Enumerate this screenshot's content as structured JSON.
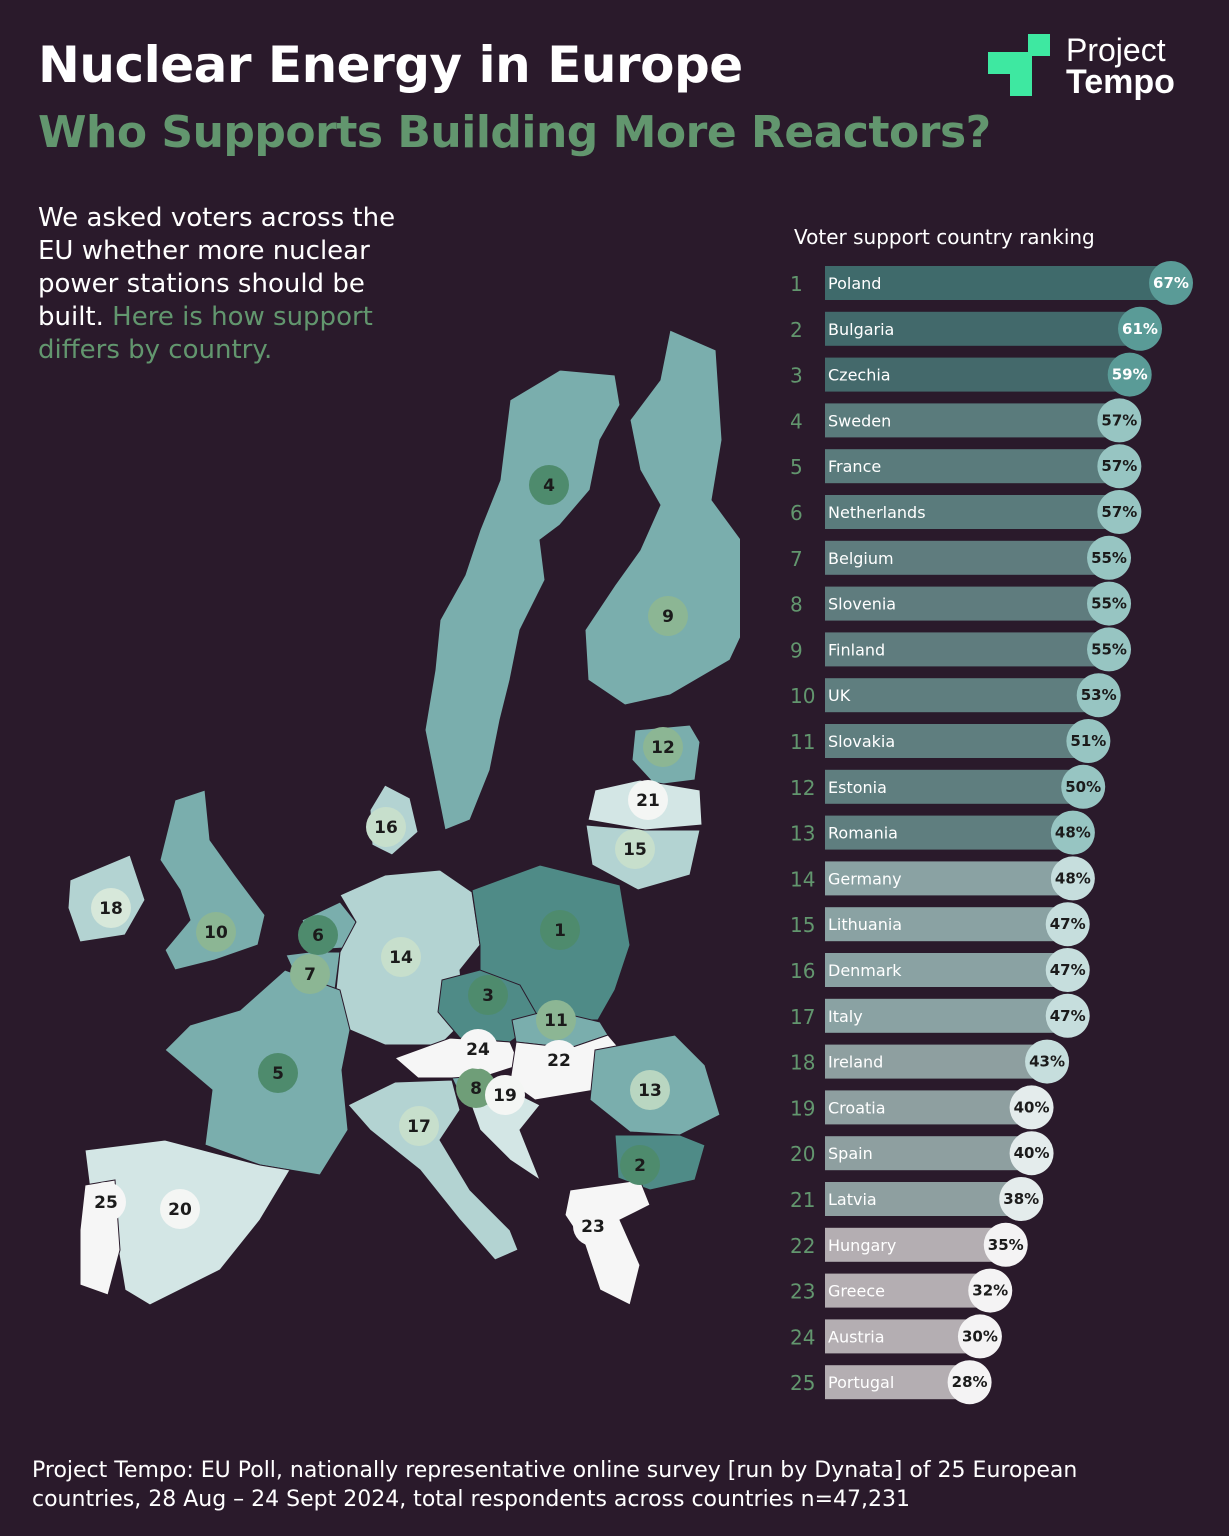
{
  "header": {
    "title": "Nuclear Energy in Europe",
    "subtitle": "Who Supports Building More Reactors?"
  },
  "logo": {
    "line1": "Project",
    "line2": "Tempo",
    "accent_color": "#3ee8a1"
  },
  "intro": {
    "text": "We asked voters across the EU whether more nuclear power stations should be built.",
    "highlight": "Here is how support differs by country."
  },
  "chart_data": {
    "type": "bar",
    "title": "Voter support country ranking",
    "orientation": "horizontal",
    "xlim": [
      0,
      67
    ],
    "grid": false,
    "ranks": [
      1,
      2,
      3,
      4,
      5,
      6,
      7,
      8,
      9,
      10,
      11,
      12,
      13,
      14,
      15,
      16,
      17,
      18,
      19,
      20,
      21,
      22,
      23,
      24,
      25
    ],
    "categories": [
      "Poland",
      "Bulgaria",
      "Czechia",
      "Sweden",
      "France",
      "Netherlands",
      "Belgium",
      "Slovenia",
      "Finland",
      "UK",
      "Slovakia",
      "Estonia",
      "Romania",
      "Germany",
      "Lithuania",
      "Denmark",
      "Italy",
      "Ireland",
      "Croatia",
      "Spain",
      "Latvia",
      "Hungary",
      "Greece",
      "Austria",
      "Portugal"
    ],
    "values": [
      67,
      61,
      59,
      57,
      57,
      57,
      55,
      55,
      55,
      53,
      51,
      50,
      48,
      48,
      47,
      47,
      47,
      43,
      40,
      40,
      38,
      35,
      32,
      30,
      28
    ],
    "value_labels": [
      "67%",
      "61%",
      "59%",
      "57%",
      "57%",
      "57%",
      "55%",
      "55%",
      "55%",
      "53%",
      "51%",
      "50%",
      "48%",
      "48%",
      "47%",
      "47%",
      "47%",
      "43%",
      "40%",
      "40%",
      "38%",
      "35%",
      "32%",
      "30%",
      "28%"
    ],
    "bar_colors": [
      "#3f6a6b",
      "#42696b",
      "#44696b",
      "#5a7b7c",
      "#5a7b7c",
      "#5a7b7c",
      "#5f7c7e",
      "#5f7c7e",
      "#5f7c7e",
      "#5f7e7f",
      "#5f7e7f",
      "#5f7e7f",
      "#5f7e7f",
      "#8aa2a3",
      "#8aa2a3",
      "#8aa2a3",
      "#8aa2a3",
      "#8e9fa0",
      "#8e9fa0",
      "#8e9fa0",
      "#8e9fa0",
      "#b4aeb2",
      "#b4aeb2",
      "#b4aeb2",
      "#b4aeb2"
    ],
    "badge_colors": [
      "#5a9b97",
      "#5a9b97",
      "#5a9b97",
      "#97c5c2",
      "#97c5c2",
      "#97c5c2",
      "#97c5c2",
      "#97c5c2",
      "#97c5c2",
      "#97c5c2",
      "#97c5c2",
      "#97c5c2",
      "#97c5c2",
      "#c6dedd",
      "#c6dedd",
      "#c6dedd",
      "#c6dedd",
      "#c6dedd",
      "#e4ecec",
      "#e4ecec",
      "#e4ecec",
      "#f4f3f4",
      "#f4f3f4",
      "#f4f3f4",
      "#f4f3f4"
    ]
  },
  "map": {
    "countries": [
      {
        "name": "Poland",
        "rank": "1",
        "fill": "#4f8b87",
        "marker": "#4e8b6d"
      },
      {
        "name": "Bulgaria",
        "rank": "2",
        "fill": "#4f8b87",
        "marker": "#4e8b6d"
      },
      {
        "name": "Czechia",
        "rank": "3",
        "fill": "#4f8b87",
        "marker": "#4e8b6d"
      },
      {
        "name": "Sweden",
        "rank": "4",
        "fill": "#7aaead",
        "marker": "#4e8b6d"
      },
      {
        "name": "France",
        "rank": "5",
        "fill": "#7aaead",
        "marker": "#4e8b6d"
      },
      {
        "name": "Netherlands",
        "rank": "6",
        "fill": "#7aaead",
        "marker": "#4e8b6d"
      },
      {
        "name": "Belgium",
        "rank": "7",
        "fill": "#7aaead",
        "marker": "#8cb694"
      },
      {
        "name": "Slovenia",
        "rank": "8",
        "fill": "#7aaead",
        "marker": "#6f9e78"
      },
      {
        "name": "Finland",
        "rank": "9",
        "fill": "#7aaead",
        "marker": "#8cb694"
      },
      {
        "name": "UK",
        "rank": "10",
        "fill": "#7aaead",
        "marker": "#8cb694"
      },
      {
        "name": "Slovakia",
        "rank": "11",
        "fill": "#7aaead",
        "marker": "#8cb694"
      },
      {
        "name": "Estonia",
        "rank": "12",
        "fill": "#7aaead",
        "marker": "#8cb694"
      },
      {
        "name": "Romania",
        "rank": "13",
        "fill": "#7aaead",
        "marker": "#b9d6c1"
      },
      {
        "name": "Germany",
        "rank": "14",
        "fill": "#b3d3d2",
        "marker": "#c7dfcc"
      },
      {
        "name": "Lithuania",
        "rank": "15",
        "fill": "#b3d3d2",
        "marker": "#c7dfcc"
      },
      {
        "name": "Denmark",
        "rank": "16",
        "fill": "#b3d3d2",
        "marker": "#c7dfcc"
      },
      {
        "name": "Italy",
        "rank": "17",
        "fill": "#b3d3d2",
        "marker": "#c7dfcc"
      },
      {
        "name": "Ireland",
        "rank": "18",
        "fill": "#b3d3d2",
        "marker": "#d7e8da"
      },
      {
        "name": "Croatia",
        "rank": "19",
        "fill": "#d3e6e5",
        "marker": "#f4f6f4"
      },
      {
        "name": "Spain",
        "rank": "20",
        "fill": "#d3e6e5",
        "marker": "#f4f6f4"
      },
      {
        "name": "Latvia",
        "rank": "21",
        "fill": "#d3e6e5",
        "marker": "#f4f6f4"
      },
      {
        "name": "Hungary",
        "rank": "22",
        "fill": "#f6f6f6",
        "marker": "#f6f6f6"
      },
      {
        "name": "Greece",
        "rank": "23",
        "fill": "#f6f6f6",
        "marker": "#f6f6f6"
      },
      {
        "name": "Austria",
        "rank": "24",
        "fill": "#f6f6f6",
        "marker": "#f6f6f6"
      },
      {
        "name": "Portugal",
        "rank": "25",
        "fill": "#f6f6f6",
        "marker": "#f6f6f6"
      }
    ]
  },
  "footer": {
    "source": "Project Tempo: EU Poll, nationally representative online survey [run by Dynata] of 25 European countries, 28 Aug – 24 Sept 2024, total respondents across countries n=47,231"
  }
}
